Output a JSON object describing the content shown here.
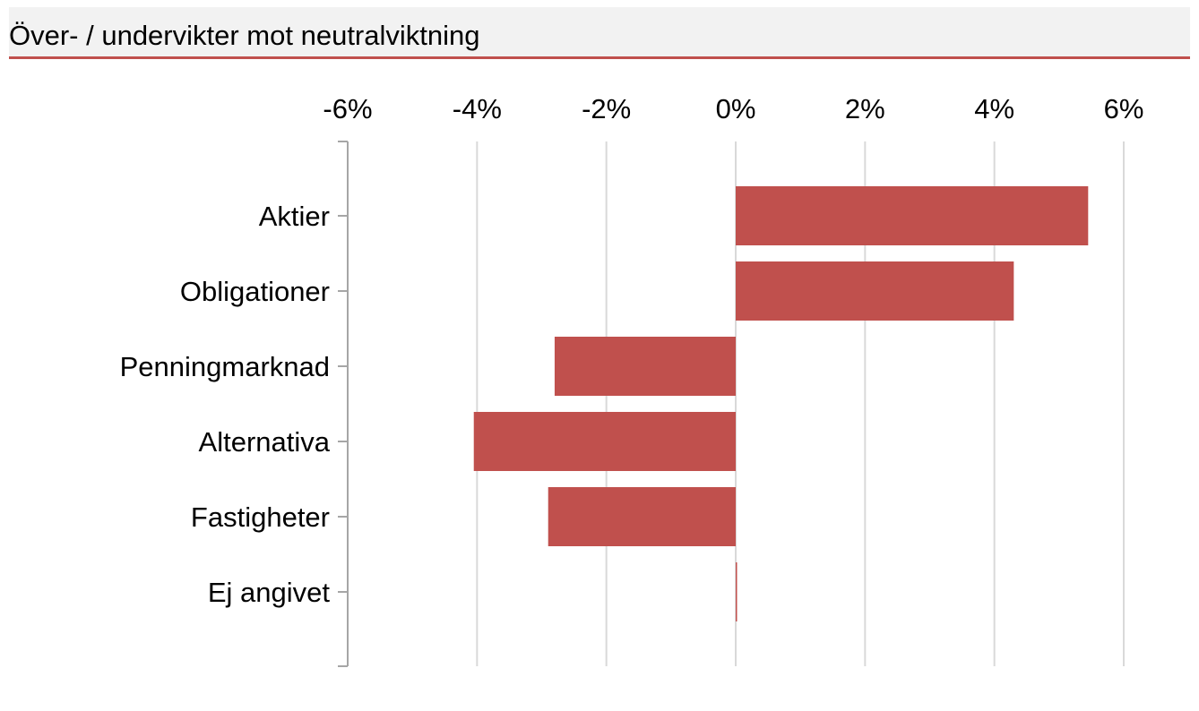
{
  "title": "Över- / undervikter mot neutralviktning",
  "colors": {
    "bar": "#c0504d",
    "title_rule": "#c0504d",
    "title_background": "#f2f2f2",
    "grid": "#d9d9d9",
    "axis": "#a6a6a6"
  },
  "chart_data": {
    "type": "bar",
    "orientation": "horizontal",
    "categories": [
      "Aktier",
      "Obligationer",
      "Penningmarknad",
      "Alternativa",
      "Fastigheter",
      "Ej angivet"
    ],
    "values": [
      5.45,
      4.3,
      -2.8,
      -4.05,
      -2.9,
      0.0
    ],
    "xlim": [
      -6,
      6
    ],
    "xticks": [
      -6,
      -4,
      -2,
      0,
      2,
      4,
      6
    ],
    "xtick_labels": [
      "-6%",
      "-4%",
      "-2%",
      "0%",
      "2%",
      "4%",
      "6%"
    ],
    "x_axis_position": "top",
    "grid": true,
    "legend": "none",
    "xlabel": "",
    "ylabel": ""
  }
}
